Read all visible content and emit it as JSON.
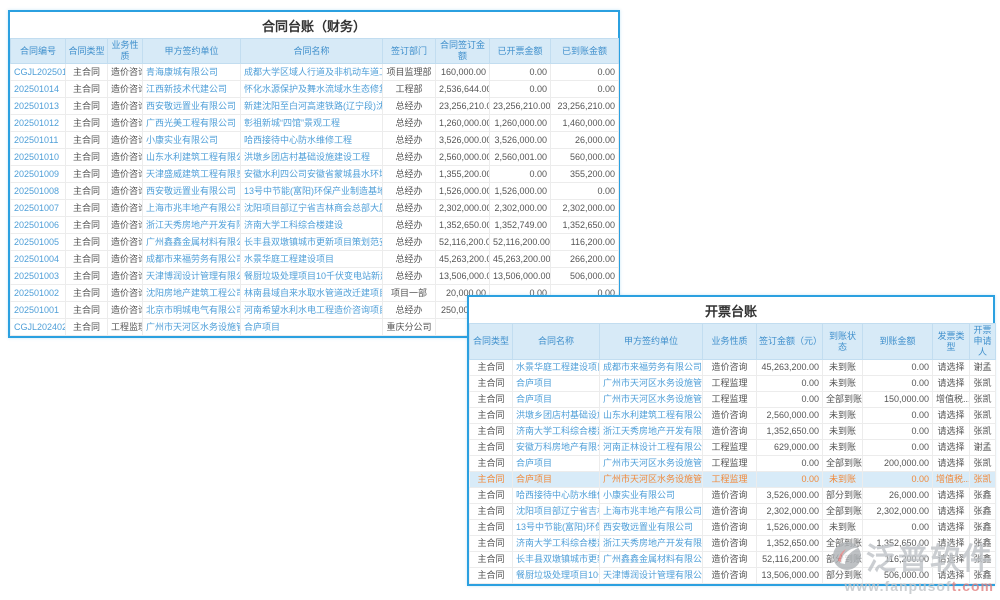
{
  "watermark": {
    "brand": "泛普软件",
    "url_main": "www.fanpusof",
    "url_tail": "t.com"
  },
  "tables": [
    {
      "id": "contract-ledger",
      "title": "合同台账（财务）",
      "columns": [
        "合同编号",
        "合同类型",
        "业务性质",
        "甲方签约单位",
        "合同名称",
        "签订部门",
        "合同签订金额",
        "已开票金额",
        "已到账金额"
      ],
      "link_cols": [
        0,
        3,
        4
      ],
      "money_cols": [
        6,
        7,
        8
      ],
      "action_cols": [],
      "highlighted_row": -1,
      "rows": [
        [
          "CGJL2025010...",
          "主合同",
          "造价咨询",
          "青海康城有限公司",
          "成都大学区域人行道及非机动车道工程施工",
          "项目监理部",
          "160,000.00",
          "0.00",
          "0.00"
        ],
        [
          "202501014",
          "主合同",
          "造价咨询",
          "江西新技术代建公司",
          "怀化水源保护及舞水流域水生态修复项目合同",
          "工程部",
          "2,536,644.00",
          "0.00",
          "0.00"
        ],
        [
          "202501013",
          "主合同",
          "造价咨询",
          "西安敬远置业有限公司",
          "新建沈阳至白河高速铁路(辽宁段)沈阳枢纽改...",
          "总经办",
          "23,256,210.00",
          "23,256,210.00",
          "23,256,210.00"
        ],
        [
          "202501012",
          "主合同",
          "造价咨询",
          "广西光美工程有限公司",
          "彰祖新城“四馆”景观工程",
          "总经办",
          "1,260,000.00",
          "1,260,000.00",
          "1,460,000.00"
        ],
        [
          "202501011",
          "主合同",
          "造价咨询",
          "小康实业有限公司",
          "哈西接待中心防水维修工程",
          "总经办",
          "3,526,000.00",
          "3,526,000.00",
          "26,000.00"
        ],
        [
          "202501010",
          "主合同",
          "造价咨询",
          "山东水利建筑工程有限公司",
          "洪墩乡团店村基础设施建设工程",
          "总经办",
          "2,560,000.00",
          "2,560,001.00",
          "560,000.00"
        ],
        [
          "202501009",
          "主合同",
          "造价咨询",
          "天津盛威建筑工程有限责任...",
          "安徽水利四公司安徽省蒙城县水环境综合治...",
          "总经办",
          "1,355,200.00",
          "0.00",
          "355,200.00"
        ],
        [
          "202501008",
          "主合同",
          "造价咨询",
          "西安敬远置业有限公司",
          "13号中节能(富阳)环保产业制造基地项目",
          "总经办",
          "1,526,000.00",
          "1,526,000.00",
          "0.00"
        ],
        [
          "202501007",
          "主合同",
          "造价咨询",
          "上海市兆丰地产有限公司",
          "沈阳项目部辽宁省吉林商会总部大厦项目",
          "总经办",
          "2,302,000.00",
          "2,302,000.00",
          "2,302,000.00"
        ],
        [
          "202501006",
          "主合同",
          "造价咨询",
          "浙江天秀房地产开发有限公司",
          "济南大学工科综合楼建设",
          "总经办",
          "1,352,650.00",
          "1,352,749.00",
          "1,352,650.00"
        ],
        [
          "202501005",
          "主合同",
          "造价咨询",
          "广州鑫鑫金属材料有限公司",
          "长丰县双墩镇城市更新项目策划范安置点",
          "总经办",
          "52,116,200.00",
          "52,116,200.00",
          "116,200.00"
        ],
        [
          "202501004",
          "主合同",
          "造价咨询",
          "成都市来福劳务有限公司",
          "水景华庭工程建设项目",
          "总经办",
          "45,263,200.00",
          "45,263,200.00",
          "266,200.00"
        ],
        [
          "202501003",
          "主合同",
          "造价咨询",
          "天津博润设计管理有限公司",
          "餐厨垃圾处理项目10千伏变电站新建工程",
          "总经办",
          "13,506,000.00",
          "13,506,000.00",
          "506,000.00"
        ],
        [
          "202501002",
          "主合同",
          "造价咨询",
          "沈阳房地产建筑工程公司",
          "林南县域自来水取水管道改迁建项目（二期）",
          "项目一部",
          "20,000.00",
          "0.00",
          "0.00"
        ],
        [
          "202501001",
          "主合同",
          "造价咨询",
          "北京市明城电气有限公司",
          "河南希望水利水电工程造价咨询项目",
          "总经办",
          "250,000.00",
          "",
          ""
        ],
        [
          "CGJL2024020...",
          "主合同",
          "工程监理",
          "广州市天河区水务设施管养...",
          "合庐项目",
          "重庆分公司",
          "",
          "",
          ""
        ]
      ]
    },
    {
      "id": "invoice-ledger",
      "title": "开票台账",
      "columns": [
        "合同类型",
        "合同名称",
        "甲方签约单位",
        "业务性质",
        "签订金额（元）",
        "到账状态",
        "到账金额",
        "发票类型",
        "开票申请人"
      ],
      "link_cols": [
        1,
        2
      ],
      "money_cols": [
        4,
        6
      ],
      "action_cols": [
        7
      ],
      "highlighted_row": 7,
      "rows": [
        [
          "主合同",
          "水景华庭工程建设项目",
          "成都市来福劳务有限公司",
          "造价咨询",
          "45,263,200.00",
          "未到账",
          "0.00",
          "请选择",
          "谢孟"
        ],
        [
          "主合同",
          "合庐项目",
          "广州市天河区水务设施管养...",
          "工程监理",
          "0.00",
          "未到账",
          "0.00",
          "请选择",
          "张凯"
        ],
        [
          "主合同",
          "合庐项目",
          "广州市天河区水务设施管养...",
          "工程监理",
          "0.00",
          "全部到账",
          "150,000.00",
          "增值税...",
          "张凯"
        ],
        [
          "主合同",
          "洪墩乡团店村基础设施...",
          "山东水利建筑工程有限公司",
          "造价咨询",
          "2,560,000.00",
          "未到账",
          "0.00",
          "请选择",
          "张凯"
        ],
        [
          "主合同",
          "济南大学工科综合楼建设",
          "浙江天秀房地产开发有限公司",
          "造价咨询",
          "1,352,650.00",
          "未到账",
          "0.00",
          "请选择",
          "张凯"
        ],
        [
          "主合同",
          "安徽万科房地产有限公司",
          "河南正林设计工程有限公司",
          "工程监理",
          "629,000.00",
          "未到账",
          "0.00",
          "请选择",
          "谢孟"
        ],
        [
          "主合同",
          "合庐项目",
          "广州市天河区水务设施管养...",
          "工程监理",
          "0.00",
          "全部到账",
          "200,000.00",
          "请选择",
          "张凯"
        ],
        [
          "主合同",
          "合庐项目",
          "广州市天河区水务设施管养...",
          "工程监理",
          "0.00",
          "未到账",
          "0.00",
          "增值税...",
          "张凯"
        ],
        [
          "主合同",
          "哈西接待中心防水维修...",
          "小康实业有限公司",
          "造价咨询",
          "3,526,000.00",
          "部分到账",
          "26,000.00",
          "请选择",
          "张鑫"
        ],
        [
          "主合同",
          "沈阳项目部辽宁省吉林...",
          "上海市兆丰地产有限公司",
          "造价咨询",
          "2,302,000.00",
          "全部到账",
          "2,302,000.00",
          "请选择",
          "张鑫"
        ],
        [
          "主合同",
          "13号中节能(富阳)环保...",
          "西安敬远置业有限公司",
          "造价咨询",
          "1,526,000.00",
          "未到账",
          "0.00",
          "请选择",
          "张鑫"
        ],
        [
          "主合同",
          "济南大学工科综合楼建设",
          "浙江天秀房地产开发有限公司",
          "造价咨询",
          "1,352,650.00",
          "全部到账",
          "1,352,650.00",
          "请选择",
          "张鑫"
        ],
        [
          "主合同",
          "长丰县双墩镇城市更新...",
          "广州鑫鑫金属材料有限公司",
          "造价咨询",
          "52,116,200.00",
          "部分到账",
          "116,200.00",
          "请选择",
          "张鑫"
        ],
        [
          "主合同",
          "餐厨垃圾处理项目10千...",
          "天津博润设计管理有限公司",
          "造价咨询",
          "13,506,000.00",
          "部分到账",
          "506,000.00",
          "请选择",
          "张鑫"
        ]
      ]
    }
  ]
}
